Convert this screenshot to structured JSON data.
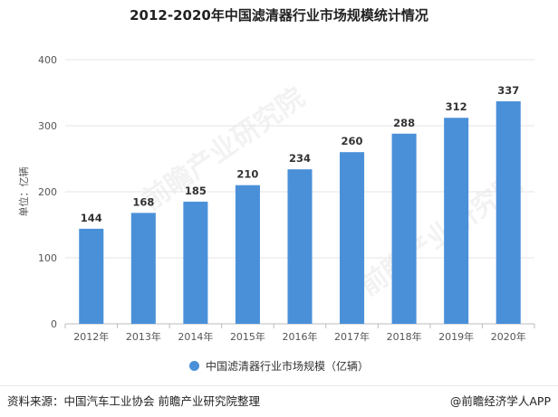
{
  "title": "2012-2020年中国滤清器行业市场规模统计情况",
  "footer": {
    "source": "资料来源：中国汽车工业协会 前瞻产业研究院整理",
    "brand": "@前瞻经济学人APP"
  },
  "watermark": "前瞻产业研究院",
  "chart_data": {
    "type": "bar",
    "title": "2012-2020年中国滤清器行业市场规模统计情况",
    "categories": [
      "2012年",
      "2013年",
      "2014年",
      "2015年",
      "2016年",
      "2017年",
      "2018年",
      "2019年",
      "2020年"
    ],
    "series": [
      {
        "name": "中国滤清器行业市场规模（亿辆）",
        "values": [
          144,
          168,
          185,
          210,
          234,
          260,
          288,
          312,
          337
        ]
      }
    ],
    "ylabel": "单位：亿辆",
    "xlabel": "",
    "ylim": [
      0,
      400
    ],
    "yticks": [
      0,
      100,
      200,
      300,
      400
    ],
    "grid": true,
    "legend_position": "bottom",
    "colors": {
      "bar": "#4a90d9",
      "grid": "#e6e6e6",
      "axis": "#bbbbbb"
    }
  }
}
